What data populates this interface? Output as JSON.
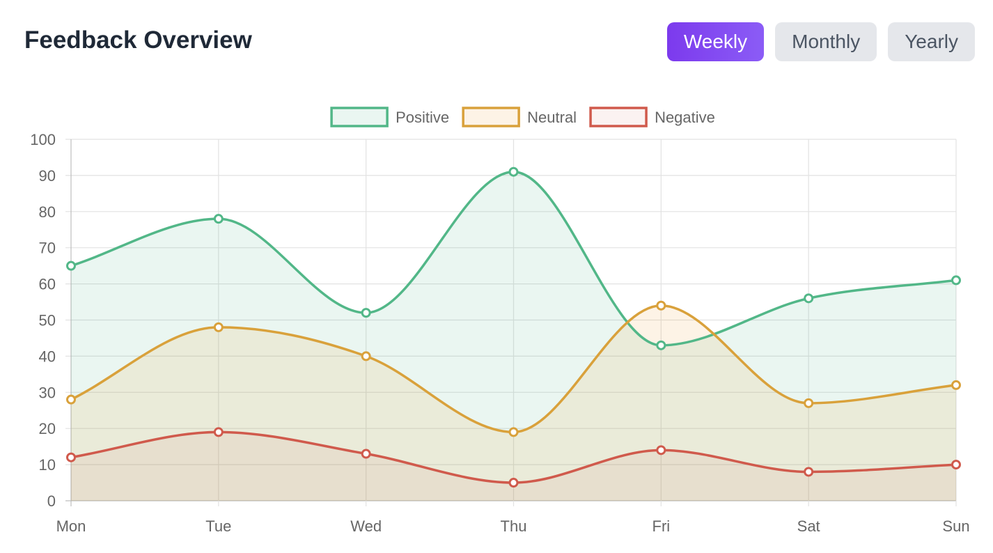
{
  "header": {
    "title": "Feedback Overview",
    "buttons": [
      {
        "label": "Weekly",
        "active": true
      },
      {
        "label": "Monthly",
        "active": false
      },
      {
        "label": "Yearly",
        "active": false
      }
    ]
  },
  "colors": {
    "positive": "#52b788",
    "neutral": "#d9a13b",
    "negative": "#d05a4c",
    "accent": "#7c3aed"
  },
  "chart_data": {
    "type": "line",
    "categories": [
      "Mon",
      "Tue",
      "Wed",
      "Thu",
      "Fri",
      "Sat",
      "Sun"
    ],
    "series": [
      {
        "name": "Positive",
        "values": [
          65,
          78,
          52,
          91,
          43,
          56,
          61
        ]
      },
      {
        "name": "Neutral",
        "values": [
          28,
          48,
          40,
          19,
          54,
          27,
          32
        ]
      },
      {
        "name": "Negative",
        "values": [
          12,
          19,
          13,
          5,
          14,
          8,
          10
        ]
      }
    ],
    "fill": true,
    "smooth": true,
    "ylim": [
      0,
      100
    ],
    "yticks": [
      0,
      10,
      20,
      30,
      40,
      50,
      60,
      70,
      80,
      90,
      100
    ],
    "grid": true,
    "legend": "top-center",
    "title": "",
    "xlabel": "",
    "ylabel": ""
  }
}
